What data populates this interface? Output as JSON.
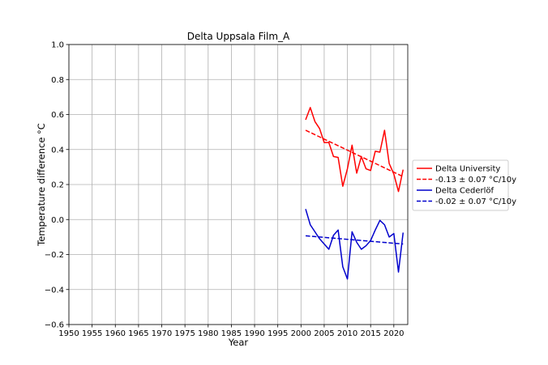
{
  "chart_data": {
    "type": "line",
    "title": "Delta Uppsala Film_A",
    "xlabel": "Year",
    "ylabel": "Temperature difference °C",
    "xlim": [
      1950,
      2023
    ],
    "ylim": [
      -0.6,
      1.0
    ],
    "xticks": [
      "1950",
      "1955",
      "1960",
      "1965",
      "1970",
      "1975",
      "1980",
      "1985",
      "1990",
      "1995",
      "2000",
      "2005",
      "2010",
      "2015",
      "2020"
    ],
    "yticks": [
      "−0.6",
      "−0.4",
      "−0.2",
      "0.0",
      "0.2",
      "0.4",
      "0.6",
      "0.8",
      "1.0"
    ],
    "grid": true,
    "legend_position": "right, outside",
    "series": [
      {
        "name": "Delta University",
        "color": "#ff0000",
        "style": "solid",
        "x": [
          2001,
          2002,
          2003,
          2004,
          2005,
          2006,
          2007,
          2008,
          2009,
          2010,
          2011,
          2012,
          2013,
          2014,
          2015,
          2016,
          2017,
          2018,
          2019,
          2020,
          2021,
          2022
        ],
        "y": [
          0.57,
          0.64,
          0.56,
          0.52,
          0.44,
          0.44,
          0.36,
          0.355,
          0.19,
          0.29,
          0.425,
          0.265,
          0.36,
          0.29,
          0.28,
          0.39,
          0.385,
          0.51,
          0.32,
          0.26,
          0.16,
          0.285
        ]
      },
      {
        "name": "-0.13 ± 0.07 °C/10y",
        "color": "#ff0000",
        "style": "dashed",
        "x": [
          2001,
          2022
        ],
        "y": [
          0.51,
          0.245
        ]
      },
      {
        "name": "Delta Cederlöf",
        "color": "#0000cc",
        "style": "solid",
        "x": [
          2001,
          2002,
          2003,
          2004,
          2005,
          2006,
          2007,
          2008,
          2009,
          2010,
          2011,
          2012,
          2013,
          2014,
          2015,
          2016,
          2017,
          2018,
          2019,
          2020,
          2021,
          2022
        ],
        "y": [
          0.06,
          -0.03,
          -0.07,
          -0.11,
          -0.14,
          -0.17,
          -0.09,
          -0.06,
          -0.27,
          -0.34,
          -0.07,
          -0.13,
          -0.17,
          -0.15,
          -0.12,
          -0.06,
          -0.005,
          -0.03,
          -0.1,
          -0.08,
          -0.3,
          -0.075
        ]
      },
      {
        "name": "-0.02 ± 0.07 °C/10y",
        "color": "#0000cc",
        "style": "dashed",
        "x": [
          2001,
          2022
        ],
        "y": [
          -0.093,
          -0.14
        ]
      }
    ]
  }
}
